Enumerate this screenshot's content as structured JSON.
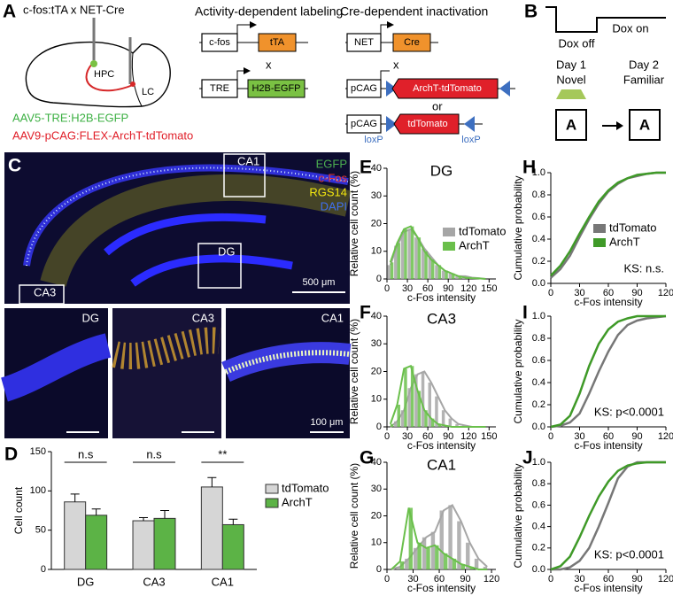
{
  "panel_a": {
    "label": "A",
    "title": "c-fos:tTA x NET-Cre",
    "region_hpc": "HPC",
    "region_lc": "LC",
    "virus_1": "AAV5-TRE:H2B-EGFP",
    "virus_2": "AAV9-pCAG:FLEX-ArchT-tdTomato",
    "labeling": {
      "title": "Activity-dependent labeling",
      "promoter_1": "c-fos",
      "gene_1": "tTA",
      "cross": "x",
      "promoter_2": "TRE",
      "gene_2": "H2B-EGFP"
    },
    "inactivation": {
      "title": "Cre-dependent inactivation",
      "promoter_1": "NET",
      "gene_1": "Cre",
      "cross": "x",
      "promoter_2": "pCAG",
      "gene_2": "ArchT-tdTomato",
      "or": "or",
      "promoter_3": "pCAG",
      "gene_3": "tdTomato",
      "loxp_1": "loxP",
      "loxp_2": "loxP"
    }
  },
  "panel_b": {
    "label": "B",
    "dox_off": "Dox off",
    "dox_on": "Dox on",
    "day_1": "Day 1",
    "context_1": "Novel",
    "day_2": "Day 2",
    "context_2": "Familiar",
    "box_1": "A",
    "box_2": "A"
  },
  "panel_c": {
    "label": "C",
    "channels": [
      "EGFP",
      "c-Fos",
      "RGS14",
      "DAPI"
    ],
    "regions": [
      "CA1",
      "DG",
      "CA3"
    ],
    "scale_1": "500 μm",
    "insets": [
      "DG",
      "CA3",
      "CA1"
    ],
    "scale_2": "100 μm"
  },
  "chart_data": [
    {
      "type": "bar",
      "panel_label": "D",
      "ylabel": "Cell count",
      "categories": [
        "DG",
        "CA3",
        "CA1"
      ],
      "series": [
        {
          "name": "tdTomato",
          "color": "#d6d6d6",
          "values": [
            86,
            62,
            105
          ],
          "errors": [
            10,
            4,
            12
          ]
        },
        {
          "name": "ArchT",
          "color": "#5cb346",
          "values": [
            69,
            65,
            57
          ],
          "errors": [
            8,
            10,
            7
          ]
        }
      ],
      "annotations": [
        "n.s",
        "n.s",
        "**"
      ],
      "ylim": [
        0,
        150
      ],
      "yticks": [
        0,
        50,
        100,
        150
      ]
    },
    {
      "type": "histogram",
      "panel_label": "E",
      "title": "DG",
      "xlabel": "c-Fos intensity",
      "ylabel": "Relative cell count (%)",
      "bins": [
        0,
        10,
        20,
        30,
        40,
        50,
        60,
        70,
        80,
        90,
        100,
        110,
        120,
        130,
        140,
        150
      ],
      "series": [
        {
          "name": "tdTomato",
          "color": "#a6a6a6",
          "values": [
            5,
            12,
            17,
            18,
            15,
            11,
            8,
            5,
            3,
            2,
            1,
            1,
            0.5,
            0.3,
            0
          ]
        },
        {
          "name": "ArchT",
          "color": "#6abf4b",
          "values": [
            6,
            13,
            18,
            19,
            15,
            10,
            7,
            5,
            3,
            2,
            1,
            0.5,
            0.3,
            0.2,
            0
          ]
        }
      ],
      "xlim": [
        0,
        160
      ],
      "xticks": [
        0,
        30,
        60,
        90,
        120,
        150
      ],
      "ylim": [
        0,
        40
      ],
      "yticks": [
        0,
        10,
        20,
        30,
        40
      ],
      "legend": "center right"
    },
    {
      "type": "histogram",
      "panel_label": "F",
      "title": "CA3",
      "xlabel": "c-Fos intensity",
      "ylabel": "Relative cell count (%)",
      "bins": [
        0,
        10,
        20,
        30,
        40,
        50,
        60,
        70,
        80,
        90,
        100,
        110,
        120,
        130,
        140,
        150
      ],
      "series": [
        {
          "name": "tdTomato",
          "color": "#a6a6a6",
          "values": [
            0,
            2,
            6,
            14,
            19,
            20,
            16,
            11,
            6,
            3,
            1,
            0.5,
            0,
            0,
            0
          ]
        },
        {
          "name": "ArchT",
          "color": "#6abf4b",
          "values": [
            1,
            8,
            21,
            22,
            13,
            6,
            3,
            1,
            0.5,
            0,
            0,
            0,
            0,
            0,
            0
          ]
        }
      ],
      "xlim": [
        0,
        160
      ],
      "xticks": [
        0,
        30,
        60,
        90,
        120,
        150
      ],
      "ylim": [
        0,
        40
      ],
      "yticks": [
        0,
        10,
        20,
        30,
        40
      ]
    },
    {
      "type": "histogram",
      "panel_label": "G",
      "title": "CA1",
      "xlabel": "c-Fos intensity",
      "ylabel": "Relative cell count (%)",
      "bins": [
        0,
        10,
        20,
        30,
        40,
        50,
        60,
        70,
        80,
        90,
        100,
        110,
        120
      ],
      "series": [
        {
          "name": "tdTomato",
          "color": "#a6a6a6",
          "values": [
            0,
            1,
            4,
            8,
            12,
            14,
            22,
            24,
            18,
            10,
            4,
            1
          ]
        },
        {
          "name": "ArchT",
          "color": "#6abf4b",
          "values": [
            0,
            3,
            23,
            10,
            8,
            9,
            6,
            4,
            2,
            1,
            0,
            0
          ]
        }
      ],
      "xlim": [
        0,
        125
      ],
      "xticks": [
        0,
        30,
        60,
        90,
        120
      ],
      "ylim": [
        0,
        40
      ],
      "yticks": [
        0,
        10,
        20,
        30,
        40
      ]
    },
    {
      "type": "line",
      "panel_label": "H",
      "xlabel": "c-Fos intensity",
      "ylabel": "Cumulative probability",
      "annotation": "KS: n.s.",
      "x": [
        0,
        10,
        20,
        30,
        40,
        50,
        60,
        70,
        80,
        90,
        100,
        110,
        120
      ],
      "series": [
        {
          "name": "tdTomato",
          "color": "#777777",
          "values": [
            0.05,
            0.13,
            0.25,
            0.42,
            0.58,
            0.72,
            0.83,
            0.9,
            0.95,
            0.97,
            0.99,
            1,
            1
          ]
        },
        {
          "name": "ArchT",
          "color": "#3f9a28",
          "values": [
            0.07,
            0.16,
            0.29,
            0.45,
            0.6,
            0.74,
            0.84,
            0.91,
            0.95,
            0.98,
            0.99,
            1,
            1
          ]
        }
      ],
      "xlim": [
        0,
        120
      ],
      "xticks": [
        0,
        30,
        60,
        90,
        120
      ],
      "ylim": [
        0,
        1
      ],
      "yticks": [
        {
          "value": 0,
          "label": "0.0"
        },
        {
          "value": 0.2,
          "label": "0.2"
        },
        {
          "value": 0.4,
          "label": "0.4"
        },
        {
          "value": 0.6,
          "label": "0.6"
        },
        {
          "value": 0.8,
          "label": "0.8"
        },
        {
          "value": 1,
          "label": "1.0"
        }
      ],
      "legend": "center right"
    },
    {
      "type": "line",
      "panel_label": "I",
      "xlabel": "c-Fos intensity",
      "ylabel": "Cumulative probability",
      "annotation": "KS: p<0.0001",
      "x": [
        0,
        10,
        20,
        30,
        40,
        50,
        60,
        70,
        80,
        90,
        100,
        110,
        120
      ],
      "series": [
        {
          "name": "tdTomato",
          "color": "#777777",
          "values": [
            0,
            0.01,
            0.04,
            0.12,
            0.3,
            0.5,
            0.68,
            0.83,
            0.92,
            0.96,
            0.98,
            0.99,
            1
          ]
        },
        {
          "name": "ArchT",
          "color": "#3f9a28",
          "values": [
            0,
            0.02,
            0.1,
            0.3,
            0.55,
            0.75,
            0.88,
            0.95,
            0.98,
            1,
            1,
            1,
            1
          ]
        }
      ],
      "xlim": [
        0,
        120
      ],
      "xticks": [
        0,
        30,
        60,
        90,
        120
      ],
      "ylim": [
        0,
        1
      ],
      "yticks": [
        {
          "value": 0,
          "label": "0.0"
        },
        {
          "value": 0.2,
          "label": "0.2"
        },
        {
          "value": 0.4,
          "label": "0.4"
        },
        {
          "value": 0.6,
          "label": "0.6"
        },
        {
          "value": 0.8,
          "label": "0.8"
        },
        {
          "value": 1,
          "label": "1.0"
        }
      ]
    },
    {
      "type": "line",
      "panel_label": "J",
      "xlabel": "c-Fos intensity",
      "ylabel": "Cumulative probability",
      "annotation": "KS: p<0.0001",
      "x": [
        0,
        10,
        20,
        30,
        40,
        50,
        60,
        70,
        80,
        90,
        100,
        110,
        120
      ],
      "series": [
        {
          "name": "tdTomato",
          "color": "#777777",
          "values": [
            0,
            0,
            0.02,
            0.08,
            0.2,
            0.4,
            0.62,
            0.85,
            0.96,
            1,
            1,
            1,
            1
          ]
        },
        {
          "name": "ArchT",
          "color": "#3f9a28",
          "values": [
            0,
            0.03,
            0.12,
            0.3,
            0.5,
            0.68,
            0.82,
            0.92,
            0.97,
            0.99,
            1,
            1,
            1
          ]
        }
      ],
      "xlim": [
        0,
        120
      ],
      "xticks": [
        0,
        30,
        60,
        90,
        120
      ],
      "ylim": [
        0,
        1
      ],
      "yticks": [
        {
          "value": 0,
          "label": "0.0"
        },
        {
          "value": 0.2,
          "label": "0.2"
        },
        {
          "value": 0.4,
          "label": "0.4"
        },
        {
          "value": 0.6,
          "label": "0.6"
        },
        {
          "value": 0.8,
          "label": "0.8"
        },
        {
          "value": 1,
          "label": "1.0"
        }
      ]
    }
  ]
}
